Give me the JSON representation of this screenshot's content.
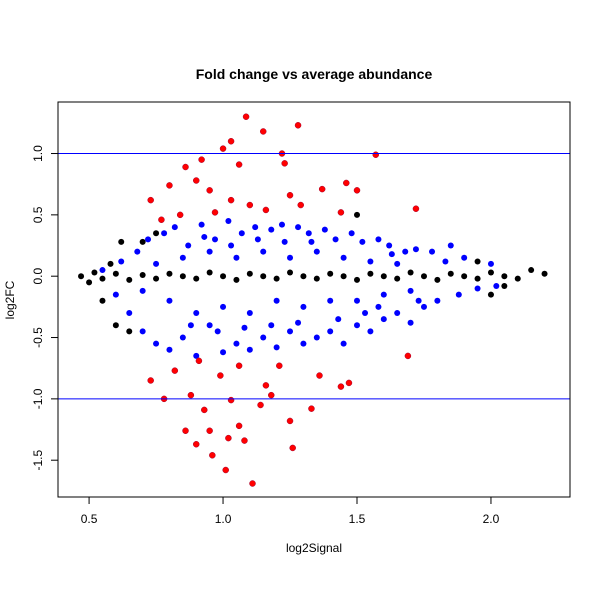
{
  "chart_data": {
    "type": "scatter",
    "title": "Fold change vs average abundance",
    "xlabel": "log2Signal",
    "ylabel": "log2FC",
    "xlim": [
      0.384,
      2.295
    ],
    "ylim": [
      -1.8,
      1.42
    ],
    "xticks": [
      "0.5",
      "1.0",
      "1.5",
      "2.0"
    ],
    "xtick_values": [
      0.5,
      1.0,
      1.5,
      2.0
    ],
    "yticks": [
      "1.0",
      "0.5",
      "0.0",
      "-0.5",
      "-1.0",
      "-1.5"
    ],
    "ytick_values": [
      1.0,
      0.5,
      0.0,
      -0.5,
      -1.0,
      -1.5
    ],
    "grid": false,
    "reference_lines": {
      "y": [
        1.0,
        -1.0
      ],
      "color": "#0000ff"
    },
    "series": [
      {
        "color": "#0000ff",
        "points": [
          [
            0.55,
            0.05
          ],
          [
            0.6,
            -0.15
          ],
          [
            0.62,
            0.12
          ],
          [
            0.65,
            -0.3
          ],
          [
            0.68,
            0.2
          ],
          [
            0.7,
            -0.45
          ],
          [
            0.72,
            0.3
          ],
          [
            0.75,
            -0.55
          ],
          [
            0.78,
            0.35
          ],
          [
            0.8,
            -0.6
          ],
          [
            0.82,
            0.4
          ],
          [
            0.85,
            -0.5
          ],
          [
            0.87,
            0.25
          ],
          [
            0.9,
            -0.65
          ],
          [
            0.92,
            0.42
          ],
          [
            0.95,
            -0.4
          ],
          [
            0.97,
            0.3
          ],
          [
            1.0,
            -0.62
          ],
          [
            1.02,
            0.45
          ],
          [
            1.05,
            -0.55
          ],
          [
            1.07,
            0.35
          ],
          [
            1.1,
            -0.6
          ],
          [
            1.12,
            0.4
          ],
          [
            1.15,
            -0.5
          ],
          [
            1.18,
            0.38
          ],
          [
            1.2,
            -0.58
          ],
          [
            1.22,
            0.42
          ],
          [
            1.25,
            -0.45
          ],
          [
            1.28,
            0.4
          ],
          [
            1.3,
            -0.55
          ],
          [
            1.32,
            0.35
          ],
          [
            1.35,
            -0.5
          ],
          [
            1.38,
            0.38
          ],
          [
            1.4,
            -0.45
          ],
          [
            1.42,
            0.3
          ],
          [
            1.45,
            -0.55
          ],
          [
            1.48,
            0.35
          ],
          [
            1.5,
            -0.4
          ],
          [
            1.52,
            0.28
          ],
          [
            1.55,
            -0.45
          ],
          [
            1.58,
            0.3
          ],
          [
            1.6,
            -0.35
          ],
          [
            1.62,
            0.25
          ],
          [
            1.65,
            -0.3
          ],
          [
            1.68,
            0.2
          ],
          [
            1.7,
            -0.38
          ],
          [
            1.72,
            0.22
          ],
          [
            1.75,
            -0.25
          ],
          [
            1.78,
            0.2
          ],
          [
            1.8,
            -0.2
          ],
          [
            1.85,
            0.25
          ],
          [
            1.88,
            -0.15
          ],
          [
            1.9,
            0.15
          ],
          [
            1.95,
            -0.1
          ],
          [
            2.0,
            0.1
          ],
          [
            2.02,
            -0.08
          ],
          [
            0.8,
            -0.2
          ],
          [
            0.85,
            0.15
          ],
          [
            0.9,
            -0.3
          ],
          [
            0.95,
            0.2
          ],
          [
            1.0,
            -0.25
          ],
          [
            1.05,
            0.15
          ],
          [
            1.1,
            -0.3
          ],
          [
            1.15,
            0.2
          ],
          [
            1.2,
            -0.2
          ],
          [
            1.25,
            0.15
          ],
          [
            1.3,
            -0.25
          ],
          [
            1.35,
            0.2
          ],
          [
            1.4,
            -0.2
          ],
          [
            1.45,
            0.15
          ],
          [
            1.5,
            -0.2
          ],
          [
            1.55,
            0.12
          ],
          [
            1.6,
            -0.15
          ],
          [
            1.65,
            0.1
          ],
          [
            1.7,
            -0.12
          ],
          [
            0.75,
            0.1
          ],
          [
            0.7,
            -0.12
          ],
          [
            0.98,
            -0.45
          ],
          [
            1.08,
            -0.42
          ],
          [
            1.18,
            -0.4
          ],
          [
            1.28,
            -0.38
          ],
          [
            0.93,
            0.32
          ],
          [
            1.13,
            0.3
          ],
          [
            1.33,
            0.28
          ],
          [
            1.43,
            -0.35
          ],
          [
            1.53,
            -0.3
          ],
          [
            0.88,
            -0.4
          ],
          [
            1.03,
            0.25
          ],
          [
            1.23,
            0.28
          ],
          [
            1.63,
            0.18
          ],
          [
            1.73,
            -0.2
          ],
          [
            1.83,
            0.12
          ],
          [
            1.58,
            -0.25
          ]
        ]
      },
      {
        "color": "#000000",
        "points": [
          [
            0.47,
            0.0
          ],
          [
            0.5,
            -0.05
          ],
          [
            0.52,
            0.03
          ],
          [
            0.55,
            -0.02
          ],
          [
            0.6,
            0.02
          ],
          [
            0.65,
            -0.03
          ],
          [
            0.7,
            0.01
          ],
          [
            0.75,
            -0.02
          ],
          [
            0.8,
            0.02
          ],
          [
            0.85,
            0.0
          ],
          [
            0.9,
            -0.02
          ],
          [
            0.95,
            0.03
          ],
          [
            1.0,
            0.0
          ],
          [
            1.05,
            -0.03
          ],
          [
            1.1,
            0.02
          ],
          [
            1.15,
            0.0
          ],
          [
            1.2,
            -0.02
          ],
          [
            1.25,
            0.03
          ],
          [
            1.3,
            0.0
          ],
          [
            1.35,
            -0.02
          ],
          [
            1.4,
            0.02
          ],
          [
            1.45,
            0.0
          ],
          [
            1.5,
            -0.03
          ],
          [
            1.55,
            0.02
          ],
          [
            1.6,
            0.0
          ],
          [
            1.65,
            -0.02
          ],
          [
            1.7,
            0.03
          ],
          [
            1.75,
            0.0
          ],
          [
            1.8,
            -0.03
          ],
          [
            1.85,
            0.02
          ],
          [
            1.9,
            0.0
          ],
          [
            1.95,
            -0.02
          ],
          [
            2.0,
            0.03
          ],
          [
            2.05,
            0.0
          ],
          [
            2.1,
            -0.02
          ],
          [
            2.15,
            0.05
          ],
          [
            2.2,
            0.02
          ],
          [
            0.6,
            -0.4
          ],
          [
            0.65,
            -0.45
          ],
          [
            0.7,
            0.28
          ],
          [
            0.58,
            0.1
          ],
          [
            0.75,
            0.35
          ],
          [
            0.55,
            -0.2
          ],
          [
            2.05,
            -0.08
          ],
          [
            1.95,
            0.12
          ],
          [
            2.0,
            -0.15
          ],
          [
            1.5,
            0.5
          ],
          [
            0.62,
            0.28
          ]
        ]
      },
      {
        "color": "#ff0000",
        "points": [
          [
            1.086,
            1.3
          ],
          [
            1.28,
            1.23
          ],
          [
            1.03,
            1.1
          ],
          [
            1.15,
            1.18
          ],
          [
            1.22,
            1.0
          ],
          [
            1.57,
            0.99
          ],
          [
            1.0,
            1.04
          ],
          [
            0.92,
            0.95
          ],
          [
            0.86,
            0.89
          ],
          [
            1.06,
            0.91
          ],
          [
            1.23,
            0.92
          ],
          [
            1.5,
            0.7
          ],
          [
            1.37,
            0.71
          ],
          [
            1.46,
            0.76
          ],
          [
            1.72,
            0.55
          ],
          [
            0.8,
            0.74
          ],
          [
            0.73,
            0.62
          ],
          [
            0.9,
            0.78
          ],
          [
            0.95,
            0.7
          ],
          [
            1.03,
            0.62
          ],
          [
            1.1,
            0.58
          ],
          [
            1.16,
            0.54
          ],
          [
            0.84,
            0.5
          ],
          [
            0.77,
            0.46
          ],
          [
            0.97,
            0.52
          ],
          [
            1.29,
            0.58
          ],
          [
            1.44,
            0.52
          ],
          [
            1.25,
            0.66
          ],
          [
            0.78,
            -1.0
          ],
          [
            1.01,
            -1.58
          ],
          [
            1.11,
            -1.69
          ],
          [
            1.26,
            -1.4
          ],
          [
            1.44,
            -0.9
          ],
          [
            1.47,
            -0.87
          ],
          [
            0.9,
            -1.37
          ],
          [
            0.86,
            -1.26
          ],
          [
            0.95,
            -1.26
          ],
          [
            1.06,
            -1.22
          ],
          [
            1.14,
            -1.05
          ],
          [
            1.25,
            -1.18
          ],
          [
            1.33,
            -1.08
          ],
          [
            0.73,
            -0.85
          ],
          [
            0.82,
            -0.77
          ],
          [
            0.91,
            -0.69
          ],
          [
            0.99,
            -0.81
          ],
          [
            1.06,
            -0.73
          ],
          [
            1.16,
            -0.89
          ],
          [
            1.21,
            -0.73
          ],
          [
            1.36,
            -0.81
          ],
          [
            0.88,
            -0.97
          ],
          [
            1.03,
            -1.01
          ],
          [
            0.93,
            -1.09
          ],
          [
            1.08,
            -1.34
          ],
          [
            1.02,
            -1.32
          ],
          [
            1.18,
            -0.97
          ],
          [
            1.69,
            -0.65
          ],
          [
            0.96,
            -1.46
          ]
        ]
      }
    ]
  }
}
